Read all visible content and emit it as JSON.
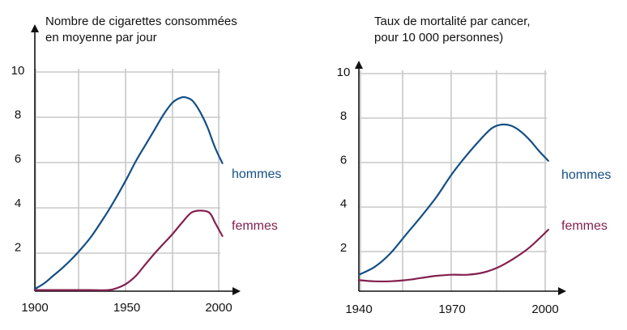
{
  "colors": {
    "hommes": "#144f85",
    "femmes": "#83204e",
    "grid": "#c8c8c8",
    "axis": "#111111"
  },
  "chart_data": [
    {
      "type": "line",
      "title_lines": [
        "Nombre de cigarettes consommées",
        "en moyenne par jour"
      ],
      "xlabel": "",
      "ylabel": "",
      "xlim": [
        1900,
        2000
      ],
      "ylim": [
        0,
        10
      ],
      "x_ticks": [
        1900,
        1950,
        2000
      ],
      "y_ticks": [
        2,
        4,
        6,
        8,
        10
      ],
      "grid": true,
      "series": [
        {
          "name": "hommes",
          "color_key": "hommes",
          "x": [
            1900,
            1905,
            1910,
            1915,
            1920,
            1925,
            1930,
            1935,
            1940,
            1945,
            1950,
            1955,
            1960,
            1965,
            1970,
            1975,
            1980,
            1983,
            1986,
            1990,
            1994,
            1998,
            2002
          ],
          "y": [
            0.1,
            0.35,
            0.7,
            1.05,
            1.45,
            1.9,
            2.4,
            3.0,
            3.65,
            4.35,
            5.1,
            5.9,
            6.6,
            7.3,
            8.0,
            8.55,
            8.78,
            8.75,
            8.6,
            8.1,
            7.4,
            6.5,
            5.8
          ]
        },
        {
          "name": "femmes",
          "color_key": "femmes",
          "x": [
            1900,
            1910,
            1920,
            1930,
            1940,
            1945,
            1950,
            1955,
            1960,
            1965,
            1970,
            1975,
            1980,
            1985,
            1990,
            1995,
            1998,
            2000,
            2002
          ],
          "y": [
            0.05,
            0.05,
            0.05,
            0.05,
            0.05,
            0.15,
            0.35,
            0.7,
            1.2,
            1.7,
            2.15,
            2.6,
            3.1,
            3.55,
            3.65,
            3.55,
            3.1,
            2.8,
            2.5
          ]
        }
      ],
      "legend": [
        "hommes",
        "femmes"
      ]
    },
    {
      "type": "line",
      "title_lines": [
        "Taux de mortalité par cancer,",
        "pour 10 000 personnes)"
      ],
      "xlabel": "",
      "ylabel": "",
      "xlim": [
        1940,
        2000
      ],
      "ylim": [
        0,
        10
      ],
      "x_ticks": [
        1940,
        1970,
        2000
      ],
      "y_ticks": [
        2,
        4,
        6,
        8,
        10
      ],
      "grid": true,
      "series": [
        {
          "name": "hommes",
          "color_key": "hommes",
          "x": [
            1940,
            1945,
            1950,
            1955,
            1960,
            1965,
            1970,
            1975,
            1980,
            1983,
            1986,
            1989,
            1992,
            1995,
            1998,
            2001
          ],
          "y": [
            0.75,
            1.1,
            1.7,
            2.55,
            3.4,
            4.3,
            5.35,
            6.25,
            7.05,
            7.45,
            7.6,
            7.55,
            7.3,
            6.9,
            6.4,
            5.95
          ]
        },
        {
          "name": "femmes",
          "color_key": "femmes",
          "x": [
            1940,
            1945,
            1950,
            1955,
            1960,
            1965,
            1970,
            1975,
            1980,
            1985,
            1990,
            1995,
            2001
          ],
          "y": [
            0.5,
            0.45,
            0.45,
            0.5,
            0.6,
            0.7,
            0.75,
            0.75,
            0.85,
            1.1,
            1.5,
            2.0,
            2.8
          ]
        }
      ],
      "legend": [
        "hommes",
        "femmes"
      ]
    }
  ]
}
